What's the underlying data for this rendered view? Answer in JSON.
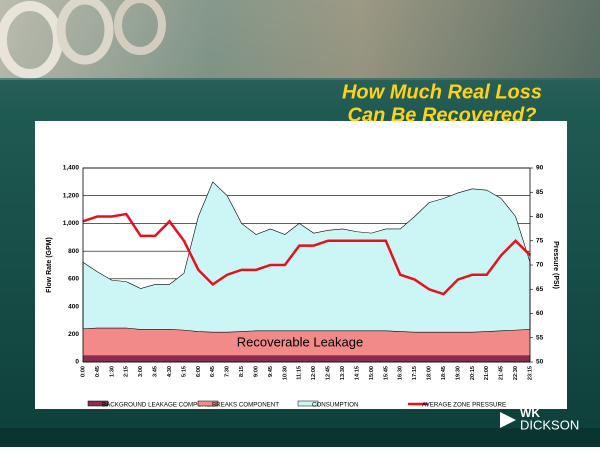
{
  "chart_data": {
    "type": "stacked-area-line",
    "title": [
      "How Much Real Loss",
      "Can Be Recovered?"
    ],
    "logo": [
      "WK",
      "DICKSON"
    ],
    "ylabel": "Flow Rate (GPM)",
    "y2label": "Pressure (PSI)",
    "annotation": "Recoverable Leakage",
    "categories": [
      "0:00",
      "0:45",
      "1:30",
      "2:15",
      "3:00",
      "3:45",
      "4:30",
      "5:15",
      "6:00",
      "6:45",
      "7:30",
      "8:15",
      "9:00",
      "9:45",
      "10:30",
      "11:15",
      "12:00",
      "12:45",
      "13:30",
      "14:15",
      "15:00",
      "15:45",
      "16:30",
      "17:15",
      "18:00",
      "18:45",
      "19:30",
      "20:15",
      "21:00",
      "21:45",
      "22:30",
      "23:15"
    ],
    "series": [
      {
        "name": "BACKGROUND LEAKAGE COMPONENT",
        "color": "#8c2d4f",
        "values": [
          50,
          50,
          50,
          50,
          50,
          50,
          50,
          50,
          50,
          50,
          50,
          50,
          50,
          50,
          50,
          50,
          50,
          50,
          50,
          50,
          50,
          50,
          50,
          50,
          50,
          50,
          50,
          50,
          50,
          50,
          50,
          50
        ]
      },
      {
        "name": "BREAKS COMPONENT",
        "color": "#f28a8a",
        "values": [
          190,
          195,
          195,
          195,
          185,
          185,
          185,
          180,
          170,
          165,
          165,
          170,
          175,
          175,
          175,
          175,
          175,
          175,
          175,
          175,
          175,
          175,
          170,
          165,
          165,
          165,
          165,
          165,
          170,
          175,
          180,
          185
        ]
      },
      {
        "name": "CONSUMPTION",
        "color": "#ccf6f6",
        "values": [
          480,
          405,
          345,
          335,
          295,
          325,
          325,
          410,
          830,
          1085,
          985,
          780,
          695,
          735,
          695,
          775,
          705,
          725,
          735,
          715,
          705,
          735,
          740,
          835,
          935,
          965,
          1005,
          1035,
          1020,
          955,
          820,
          485
        ]
      },
      {
        "name": "AVERAGE ZONE PRESSURE",
        "color": "#e8101a",
        "axis": "y2",
        "values": [
          79,
          80,
          80,
          80.5,
          76,
          76,
          79,
          75,
          69,
          66,
          68,
          69,
          69,
          70,
          70,
          74,
          74,
          75,
          75,
          75,
          75,
          75,
          68,
          67,
          65,
          64,
          67,
          68,
          68,
          72,
          75,
          72
        ]
      }
    ],
    "ylim": [
      0,
      1400
    ],
    "yticks": [
      0,
      200,
      400,
      600,
      800,
      {
        "value": 1000,
        "label": "1,000"
      },
      {
        "value": 1200,
        "label": "1,200"
      },
      {
        "value": 1400,
        "label": "1,400"
      }
    ],
    "y2lim": [
      50,
      90
    ],
    "y2ticks": [
      50,
      55,
      60,
      65,
      70,
      75,
      80,
      85,
      90
    ],
    "grid": true,
    "legend": "bottom"
  }
}
